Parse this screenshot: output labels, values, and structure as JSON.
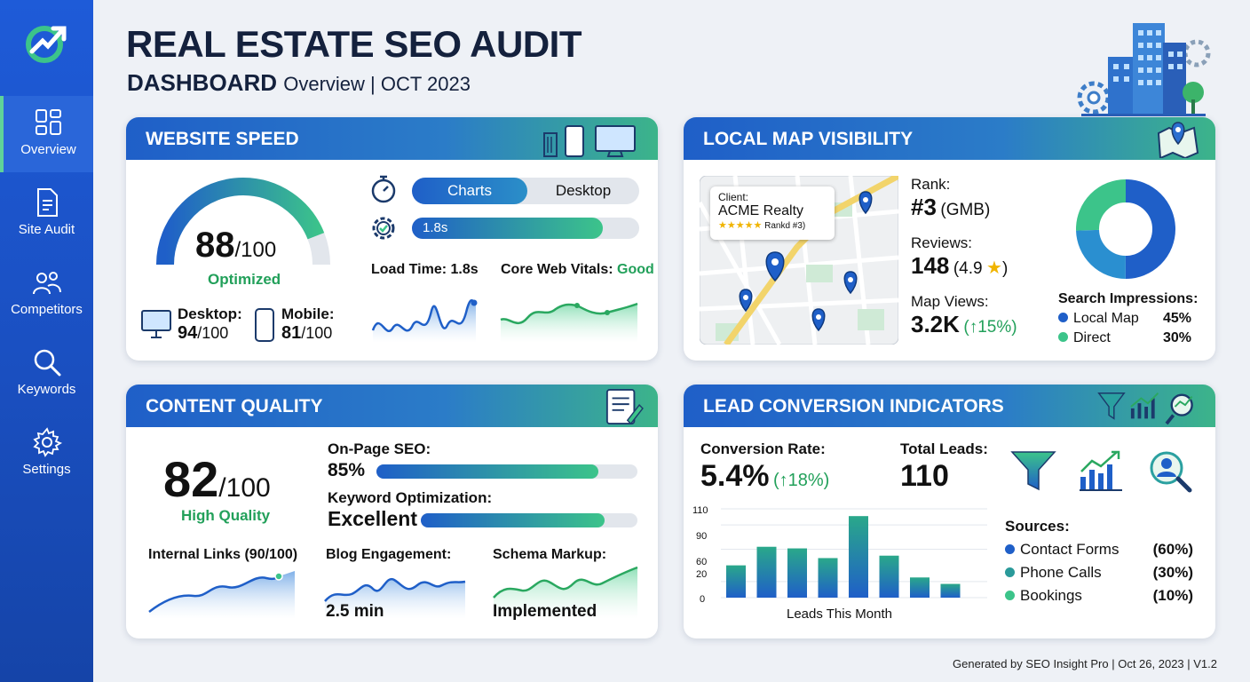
{
  "sidebar": {
    "items": [
      {
        "label": "Overview",
        "icon": "grid-icon",
        "active": true
      },
      {
        "label": "Site Audit",
        "icon": "document-icon"
      },
      {
        "label": "Competitors",
        "icon": "people-icon"
      },
      {
        "label": "Keywords",
        "icon": "search-icon"
      },
      {
        "label": "Settings",
        "icon": "gear-icon"
      }
    ]
  },
  "header": {
    "title": "REAL ESTATE SEO AUDIT",
    "subtitle_bold": "DASHBOARD",
    "subtitle_rest": "Overview | OCT 2023"
  },
  "speed": {
    "title": "WEBSITE SPEED",
    "score": "88",
    "score_den": "/100",
    "score_value": 88,
    "status": "Optimized",
    "desktop_label": "Desktop:",
    "desktop_score": "94",
    "desktop_den": "/100",
    "mobile_label": "Mobile:",
    "mobile_score": "81",
    "mobile_den": "/100",
    "toggle_left": "Charts",
    "toggle_right": "Desktop",
    "bar_label": "1.8s",
    "bar_fraction": 0.84,
    "load_time": "Load Time: 1.8s",
    "cwv_label": "Core Web Vitals:",
    "cwv_value": "Good"
  },
  "map": {
    "title": "LOCAL MAP VISIBILITY",
    "client_label": "Client:",
    "client_name": "ACME Realty",
    "client_rank": "Rankd #3)",
    "rank_label": "Rank:",
    "rank_value": "#3",
    "rank_suffix": "(GMB)",
    "reviews_label": "Reviews:",
    "reviews_value": "148",
    "reviews_rating": "(4.9",
    "reviews_close": ")",
    "views_label": "Map Views:",
    "views_value": "3.2K",
    "views_change": "(↑15%)",
    "impressions_label": "Search Impressions:",
    "impressions": [
      {
        "name": "Local Map",
        "value": "45%",
        "color": "#1f5fc8"
      },
      {
        "name": "Direct",
        "value": "30%",
        "color": "#3cc48a"
      }
    ]
  },
  "content": {
    "title": "CONTENT QUALITY",
    "score": "82",
    "score_den": "/100",
    "status": "High Quality",
    "onpage_label": "On-Page SEO:",
    "onpage_value": "85%",
    "onpage_fraction": 0.85,
    "keyword_label": "Keyword Optimization:",
    "keyword_value": "Excellent",
    "keyword_fraction": 0.85,
    "links_label": "Internal Links (90/100)",
    "blog_label": "Blog Engagement:",
    "blog_value": "2.5 min",
    "schema_label": "Schema Markup:",
    "schema_value": "Implemented"
  },
  "leads": {
    "title": "LEAD CONVERSION INDICATORS",
    "conv_label": "Conversion Rate:",
    "conv_value": "5.4%",
    "conv_change": "(↑18%)",
    "total_label": "Total Leads:",
    "total_value": "110",
    "sources_label": "Sources:",
    "sources": [
      {
        "name": "Contact Forms",
        "value": "(60%)",
        "color": "#1f5fc8"
      },
      {
        "name": "Phone Calls",
        "value": "(30%)",
        "color": "#2a9a9a"
      },
      {
        "name": "Bookings",
        "value": "(10%)",
        "color": "#3cc48a"
      }
    ]
  },
  "chart_data": {
    "type": "bar",
    "xlabel": "Leads This Month",
    "ylabel": "",
    "ylim": [
      0,
      110
    ],
    "yticks": [
      "110",
      "90",
      "60",
      "20",
      "0"
    ],
    "values": [
      40,
      63,
      61,
      49,
      101,
      52,
      25,
      17
    ],
    "grid": true
  },
  "footer": {
    "text": "Generated by SEO Insight Pro | Oct 26, 2023 | V1.2"
  }
}
